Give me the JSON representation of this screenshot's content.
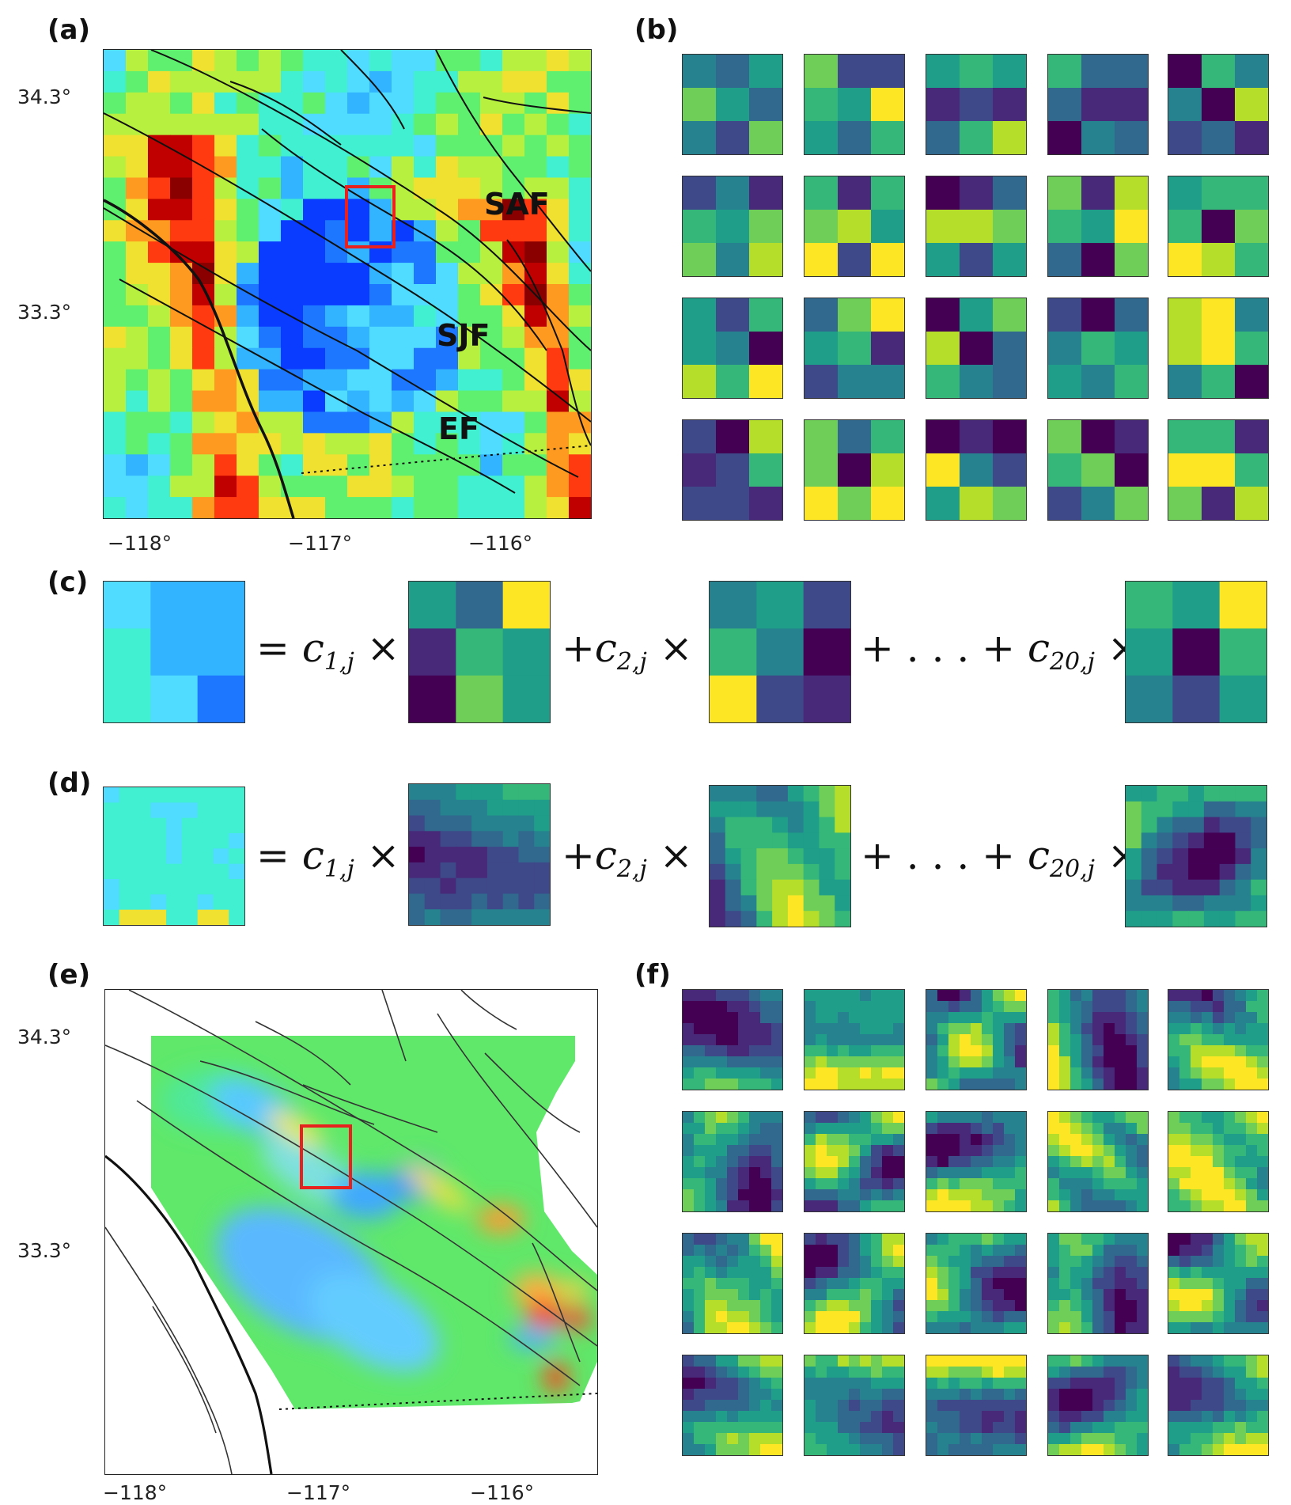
{
  "panels": {
    "a": "(a)",
    "b": "(b)",
    "c": "(c)",
    "d": "(d)",
    "e": "(e)",
    "f": "(f)"
  },
  "map_ticks": {
    "y": [
      "34.3°",
      "33.3°"
    ],
    "x": [
      "−118°",
      "−117°",
      "−116°"
    ]
  },
  "fault_labels": {
    "saf": "SAF",
    "sjf": "SJF",
    "ef": "EF"
  },
  "equation": {
    "eq": "=",
    "times": "×",
    "plus": "+",
    "ellipsis": "+ . . . +",
    "c": "c",
    "sub1": "1,j",
    "sub2": "2,j",
    "sub20": "20,j"
  },
  "colors": {
    "selection_box": "#e8201e",
    "fault_line": "#111111"
  }
}
